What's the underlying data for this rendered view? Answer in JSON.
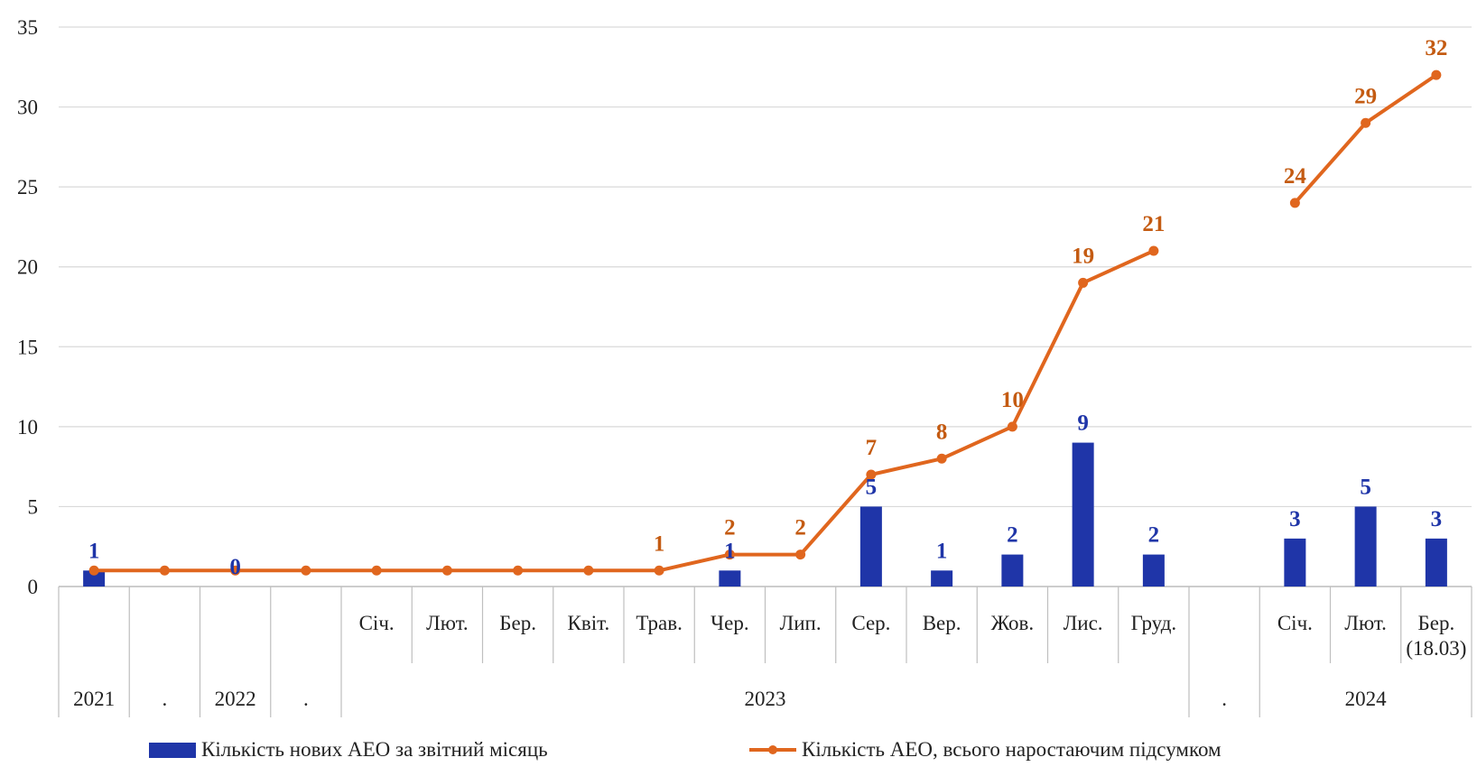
{
  "chart_data": {
    "type": "bar",
    "title": "",
    "xlabel": "",
    "ylabel": "",
    "ylim": [
      0,
      35
    ],
    "yticks": [
      "0",
      "5",
      "10",
      "15",
      "20",
      "25",
      "30",
      "35"
    ],
    "grid": true,
    "legend_position": "bottom",
    "colors": {
      "bars": "#1f35a8",
      "line": "#e0661e",
      "line_labels": "#c45b12",
      "bar_labels": "#1f35a8",
      "grid": "#d9d9d9",
      "axis": "#bfbfbf"
    },
    "categories": [
      {
        "month": "",
        "group": "2021"
      },
      {
        "month": "",
        "group": "."
      },
      {
        "month": "",
        "group": "2022"
      },
      {
        "month": "",
        "group": "."
      },
      {
        "month": "Січ.",
        "group": "2023"
      },
      {
        "month": "Лют.",
        "group": "2023"
      },
      {
        "month": "Бер.",
        "group": "2023"
      },
      {
        "month": "Квіт.",
        "group": "2023"
      },
      {
        "month": "Трав.",
        "group": "2023"
      },
      {
        "month": "Чер.",
        "group": "2023"
      },
      {
        "month": "Лип.",
        "group": "2023"
      },
      {
        "month": "Сер.",
        "group": "2023"
      },
      {
        "month": "Вер.",
        "group": "2023"
      },
      {
        "month": "Жов.",
        "group": "2023"
      },
      {
        "month": "Лис.",
        "group": "2023"
      },
      {
        "month": "Груд.",
        "group": "2023"
      },
      {
        "month": "",
        "group": "."
      },
      {
        "month": "Січ.",
        "group": "2024"
      },
      {
        "month": "Лют.",
        "group": "2024"
      },
      {
        "month": "Бер. (18.03)",
        "group": "2024"
      }
    ],
    "groups": [
      {
        "label": "2021",
        "start": 0,
        "end": 0
      },
      {
        "label": ".",
        "start": 1,
        "end": 1
      },
      {
        "label": "2022",
        "start": 2,
        "end": 2
      },
      {
        "label": ".",
        "start": 3,
        "end": 3
      },
      {
        "label": "2023",
        "start": 4,
        "end": 15
      },
      {
        "label": ".",
        "start": 16,
        "end": 16
      },
      {
        "label": "2024",
        "start": 17,
        "end": 19
      }
    ],
    "series": [
      {
        "name": "Кількість  нових АЕО за звітний місяць",
        "type": "bar",
        "values": [
          1,
          0,
          0,
          0,
          0,
          0,
          0,
          0,
          0,
          1,
          0,
          5,
          1,
          2,
          9,
          2,
          null,
          3,
          5,
          3
        ],
        "labels": [
          "1",
          "",
          "0",
          "",
          "",
          "",
          "",
          "",
          "",
          "1",
          "",
          "5",
          "1",
          "2",
          "9",
          "2",
          "",
          "3",
          "5",
          "3"
        ]
      },
      {
        "name": "Кількість  АЕО, всього наростаючим підсумком",
        "type": "line",
        "values": [
          1,
          1,
          1,
          1,
          1,
          1,
          1,
          1,
          1,
          2,
          2,
          7,
          8,
          10,
          19,
          21,
          null,
          24,
          29,
          32
        ],
        "labels": [
          "",
          "",
          "",
          "",
          "",
          "",
          "",
          "",
          "1",
          "2",
          "2",
          "7",
          "8",
          "10",
          "19",
          "21",
          "",
          "24",
          "29",
          "32"
        ]
      }
    ]
  }
}
